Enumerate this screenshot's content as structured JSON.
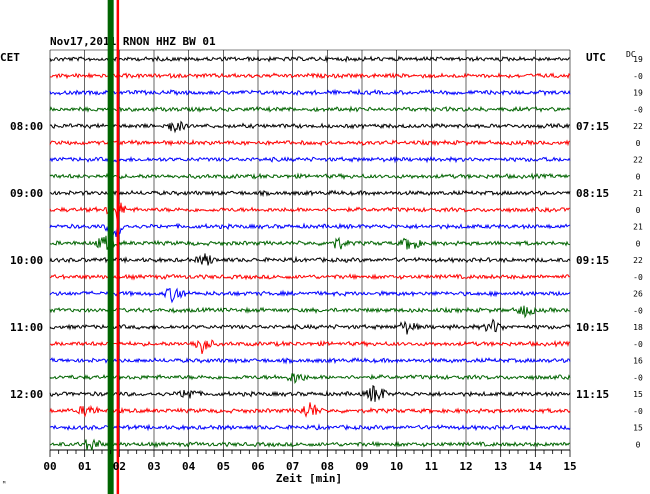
{
  "chart_data": {
    "type": "line",
    "title": "Nov17,2011   RNON HHZ BW 01",
    "left_unit": "CET",
    "right_unit": "UTC",
    "dc_header": "DC",
    "xlabel": "Zeit [min]",
    "x_ticks": [
      "00",
      "01",
      "02",
      "03",
      "04",
      "05",
      "06",
      "07",
      "08",
      "09",
      "10",
      "11",
      "12",
      "13",
      "14",
      "15"
    ],
    "x_range_min": [
      0,
      15
    ],
    "trace_colors": [
      "#000000",
      "#ff0000",
      "#0000ff",
      "#006400"
    ],
    "rows": [
      {
        "cet": "",
        "utc": "",
        "dc": "19"
      },
      {
        "cet": "",
        "utc": "",
        "dc": "-0"
      },
      {
        "cet": "",
        "utc": "",
        "dc": "19"
      },
      {
        "cet": "",
        "utc": "",
        "dc": "-0"
      },
      {
        "cet": "08:00",
        "utc": "07:15",
        "dc": "22"
      },
      {
        "cet": "",
        "utc": "",
        "dc": "0"
      },
      {
        "cet": "",
        "utc": "",
        "dc": "22"
      },
      {
        "cet": "",
        "utc": "",
        "dc": "0"
      },
      {
        "cet": "09:00",
        "utc": "08:15",
        "dc": "21"
      },
      {
        "cet": "",
        "utc": "",
        "dc": "0"
      },
      {
        "cet": "",
        "utc": "",
        "dc": "21"
      },
      {
        "cet": "",
        "utc": "",
        "dc": "0"
      },
      {
        "cet": "10:00",
        "utc": "09:15",
        "dc": "22"
      },
      {
        "cet": "",
        "utc": "",
        "dc": "-0"
      },
      {
        "cet": "",
        "utc": "",
        "dc": "26"
      },
      {
        "cet": "",
        "utc": "",
        "dc": "-0"
      },
      {
        "cet": "11:00",
        "utc": "10:15",
        "dc": "18"
      },
      {
        "cet": "",
        "utc": "",
        "dc": "-0"
      },
      {
        "cet": "",
        "utc": "",
        "dc": "16"
      },
      {
        "cet": "",
        "utc": "",
        "dc": "-0"
      },
      {
        "cet": "12:00",
        "utc": "11:15",
        "dc": "15"
      },
      {
        "cet": "",
        "utc": "",
        "dc": "-0"
      },
      {
        "cet": "",
        "utc": "",
        "dc": "15"
      },
      {
        "cet": "",
        "utc": "",
        "dc": "0"
      }
    ],
    "markers": [
      {
        "minute": 1.75,
        "color": "#006400"
      },
      {
        "minute": 1.95,
        "color": "#ff0000"
      }
    ],
    "events": [
      {
        "row": 4,
        "minute": 3.6,
        "amp": 1.3
      },
      {
        "row": 9,
        "minute": 1.9,
        "amp": 2.4
      },
      {
        "row": 10,
        "minute": 1.9,
        "amp": 2.4
      },
      {
        "row": 11,
        "minute": 8.3,
        "amp": 1.2
      },
      {
        "row": 11,
        "minute": 10.4,
        "amp": 1.6
      },
      {
        "row": 11,
        "minute": 1.6,
        "amp": 1.5
      },
      {
        "row": 12,
        "minute": 4.5,
        "amp": 1.2
      },
      {
        "row": 14,
        "minute": 3.6,
        "amp": 1.8
      },
      {
        "row": 15,
        "minute": 13.7,
        "amp": 1.2
      },
      {
        "row": 16,
        "minute": 10.3,
        "amp": 1.3
      },
      {
        "row": 16,
        "minute": 12.8,
        "amp": 1.4
      },
      {
        "row": 17,
        "minute": 4.4,
        "amp": 2.0
      },
      {
        "row": 19,
        "minute": 7.1,
        "amp": 1.2
      },
      {
        "row": 20,
        "minute": 4.0,
        "amp": 1.2
      },
      {
        "row": 20,
        "minute": 9.4,
        "amp": 2.2
      },
      {
        "row": 21,
        "minute": 1.1,
        "amp": 1.3
      },
      {
        "row": 21,
        "minute": 7.5,
        "amp": 1.8
      },
      {
        "row": 23,
        "minute": 1.2,
        "amp": 1.5
      }
    ]
  }
}
